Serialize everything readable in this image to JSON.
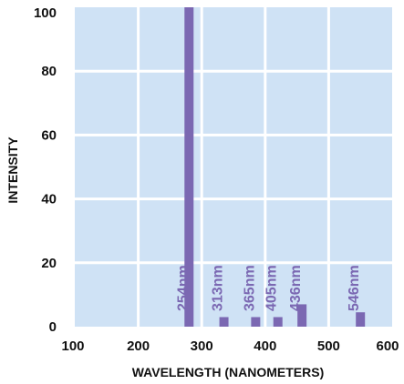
{
  "chart_data": {
    "type": "bar",
    "xlabel": "WAVELENGTH (NANOMETERS)",
    "ylabel": "INTENSITY",
    "xlim": [
      100,
      600
    ],
    "ylim": [
      0,
      100
    ],
    "x_ticks": [
      "100",
      "200",
      "300",
      "400",
      "500",
      "600"
    ],
    "y_ticks": [
      "0",
      "20",
      "40",
      "60",
      "80",
      "100"
    ],
    "grid": true,
    "background_color": "#cfe2f5",
    "grid_color": "#ffffff",
    "bar_color": "#7b68b2",
    "label_color": "#7b68b2",
    "bars": [
      {
        "label": "254nm",
        "x": 280,
        "value": 100
      },
      {
        "label": "313nm",
        "x": 335,
        "value": 3
      },
      {
        "label": "365nm",
        "x": 385,
        "value": 3
      },
      {
        "label": "405nm",
        "x": 420,
        "value": 3
      },
      {
        "label": "436nm",
        "x": 458,
        "value": 7
      },
      {
        "label": "546nm",
        "x": 550,
        "value": 4.5
      }
    ]
  }
}
